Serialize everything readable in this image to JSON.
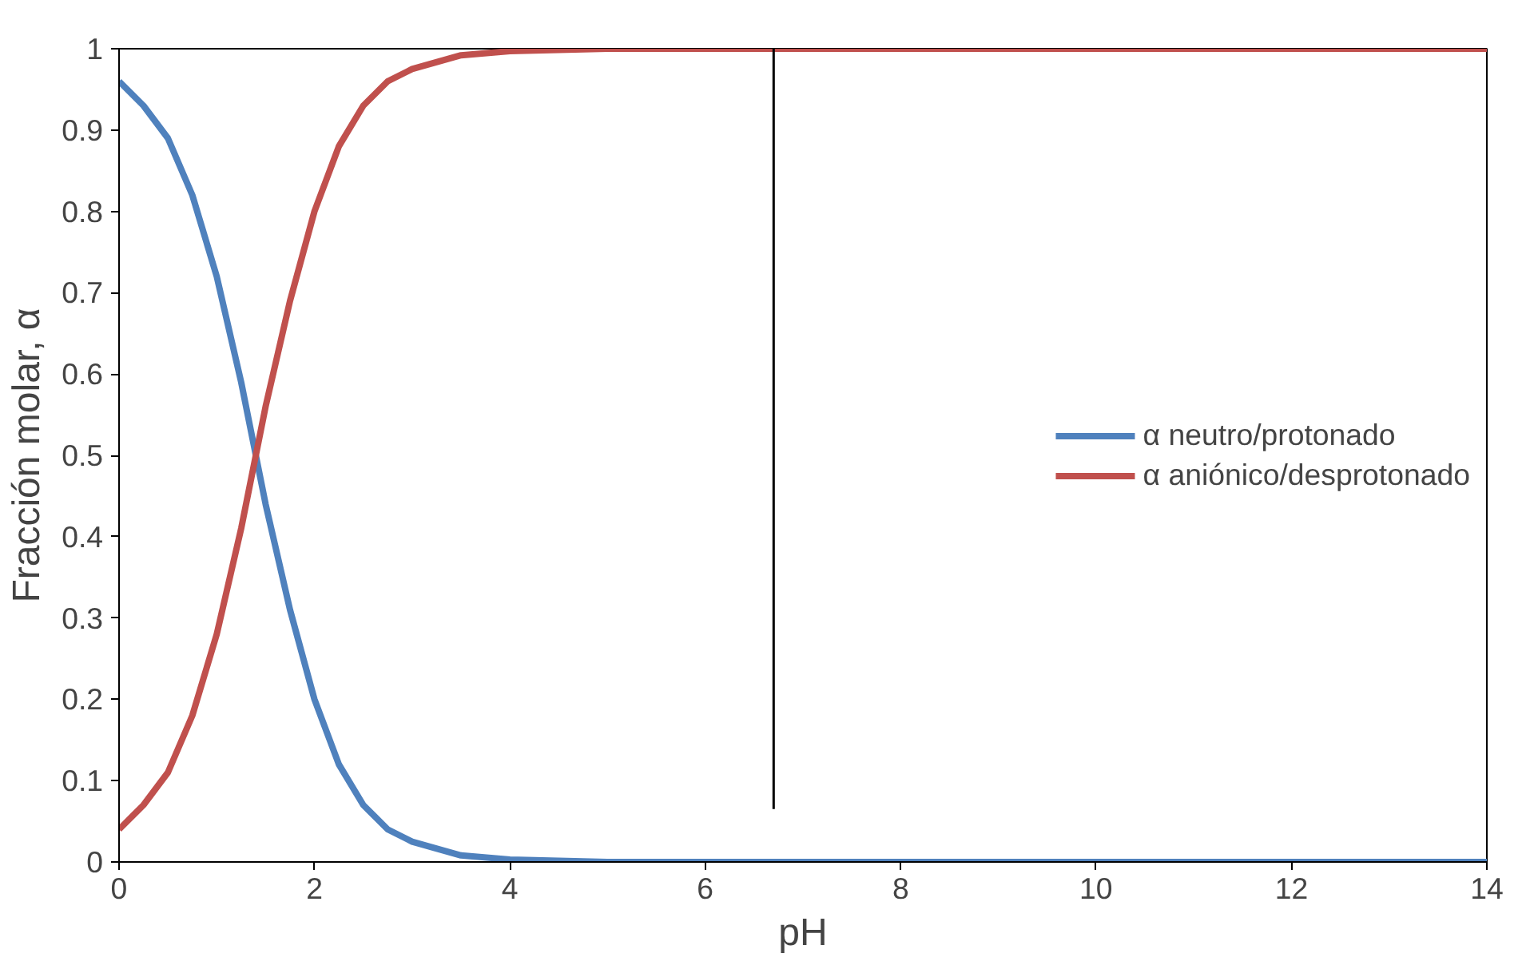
{
  "chart_data": {
    "type": "line",
    "xlabel": "pH",
    "ylabel": "Fracción molar, α",
    "x": [
      0,
      0.25,
      0.5,
      0.75,
      1,
      1.25,
      1.5,
      1.75,
      2,
      2.25,
      2.5,
      2.75,
      3,
      3.5,
      4,
      5,
      6,
      7,
      8,
      9,
      10,
      11,
      12,
      13,
      14
    ],
    "series": [
      {
        "name": "α neutro/protonado",
        "color": "#4f81bd",
        "values": [
          0.96,
          0.93,
          0.89,
          0.82,
          0.72,
          0.59,
          0.44,
          0.31,
          0.2,
          0.12,
          0.07,
          0.04,
          0.025,
          0.008,
          0.003,
          0,
          0,
          0,
          0,
          0,
          0,
          0,
          0,
          0,
          0
        ]
      },
      {
        "name": "α aniónico/desprotonado",
        "color": "#c0504d",
        "values": [
          0.04,
          0.07,
          0.11,
          0.18,
          0.28,
          0.41,
          0.56,
          0.69,
          0.8,
          0.88,
          0.93,
          0.96,
          0.975,
          0.992,
          0.997,
          1,
          1,
          1,
          1,
          1,
          1,
          1,
          1,
          1,
          1
        ]
      },
      {
        "color": "#000000",
        "x": [
          6.7,
          6.7
        ],
        "values": [
          0.065,
          1
        ]
      }
    ],
    "xlim": [
      0,
      14
    ],
    "xticks": [
      0,
      2,
      4,
      6,
      8,
      10,
      12,
      14
    ],
    "ylim": [
      0,
      1
    ],
    "yticks": [
      0,
      0.1,
      0.2,
      0.3,
      0.4,
      0.5,
      0.6,
      0.7,
      0.8,
      0.9,
      1
    ],
    "grid": false,
    "legend": "right",
    "marker": "none",
    "line_style": "solid"
  }
}
